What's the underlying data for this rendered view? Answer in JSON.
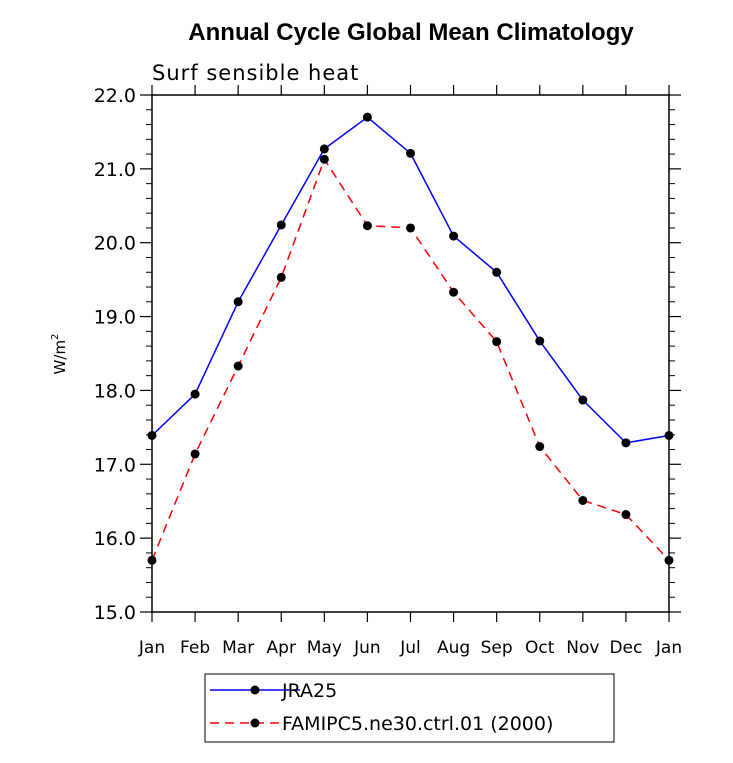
{
  "chart_data": {
    "type": "line",
    "title": "Annual Cycle Global Mean Climatology",
    "subtitle": "Surf sensible heat",
    "xlabel": "",
    "ylabel": "W/m",
    "ylabel_superscript": "2",
    "categories": [
      "Jan",
      "Feb",
      "Mar",
      "Apr",
      "May",
      "Jun",
      "Jul",
      "Aug",
      "Sep",
      "Oct",
      "Nov",
      "Dec",
      "Jan"
    ],
    "ylim": [
      15.0,
      22.0
    ],
    "yticks": [
      "15.0",
      "16.0",
      "17.0",
      "18.0",
      "19.0",
      "20.0",
      "21.0",
      "22.0"
    ],
    "grid": false,
    "legend_position": "bottom",
    "series": [
      {
        "name": "JRA25",
        "color": "#0000ff",
        "line_style": "solid",
        "marker": "filled-circle",
        "values": [
          17.39,
          17.95,
          19.2,
          20.24,
          21.27,
          21.7,
          21.21,
          20.09,
          19.6,
          18.67,
          17.87,
          17.29,
          17.39
        ]
      },
      {
        "name": "FAMIPC5.ne30.ctrl.01 (2000)",
        "color": "#ff0000",
        "line_style": "dashed",
        "marker": "filled-circle",
        "values": [
          15.7,
          17.14,
          18.33,
          19.53,
          21.13,
          20.23,
          20.2,
          19.33,
          18.66,
          17.24,
          16.51,
          16.32,
          15.7
        ]
      }
    ]
  }
}
